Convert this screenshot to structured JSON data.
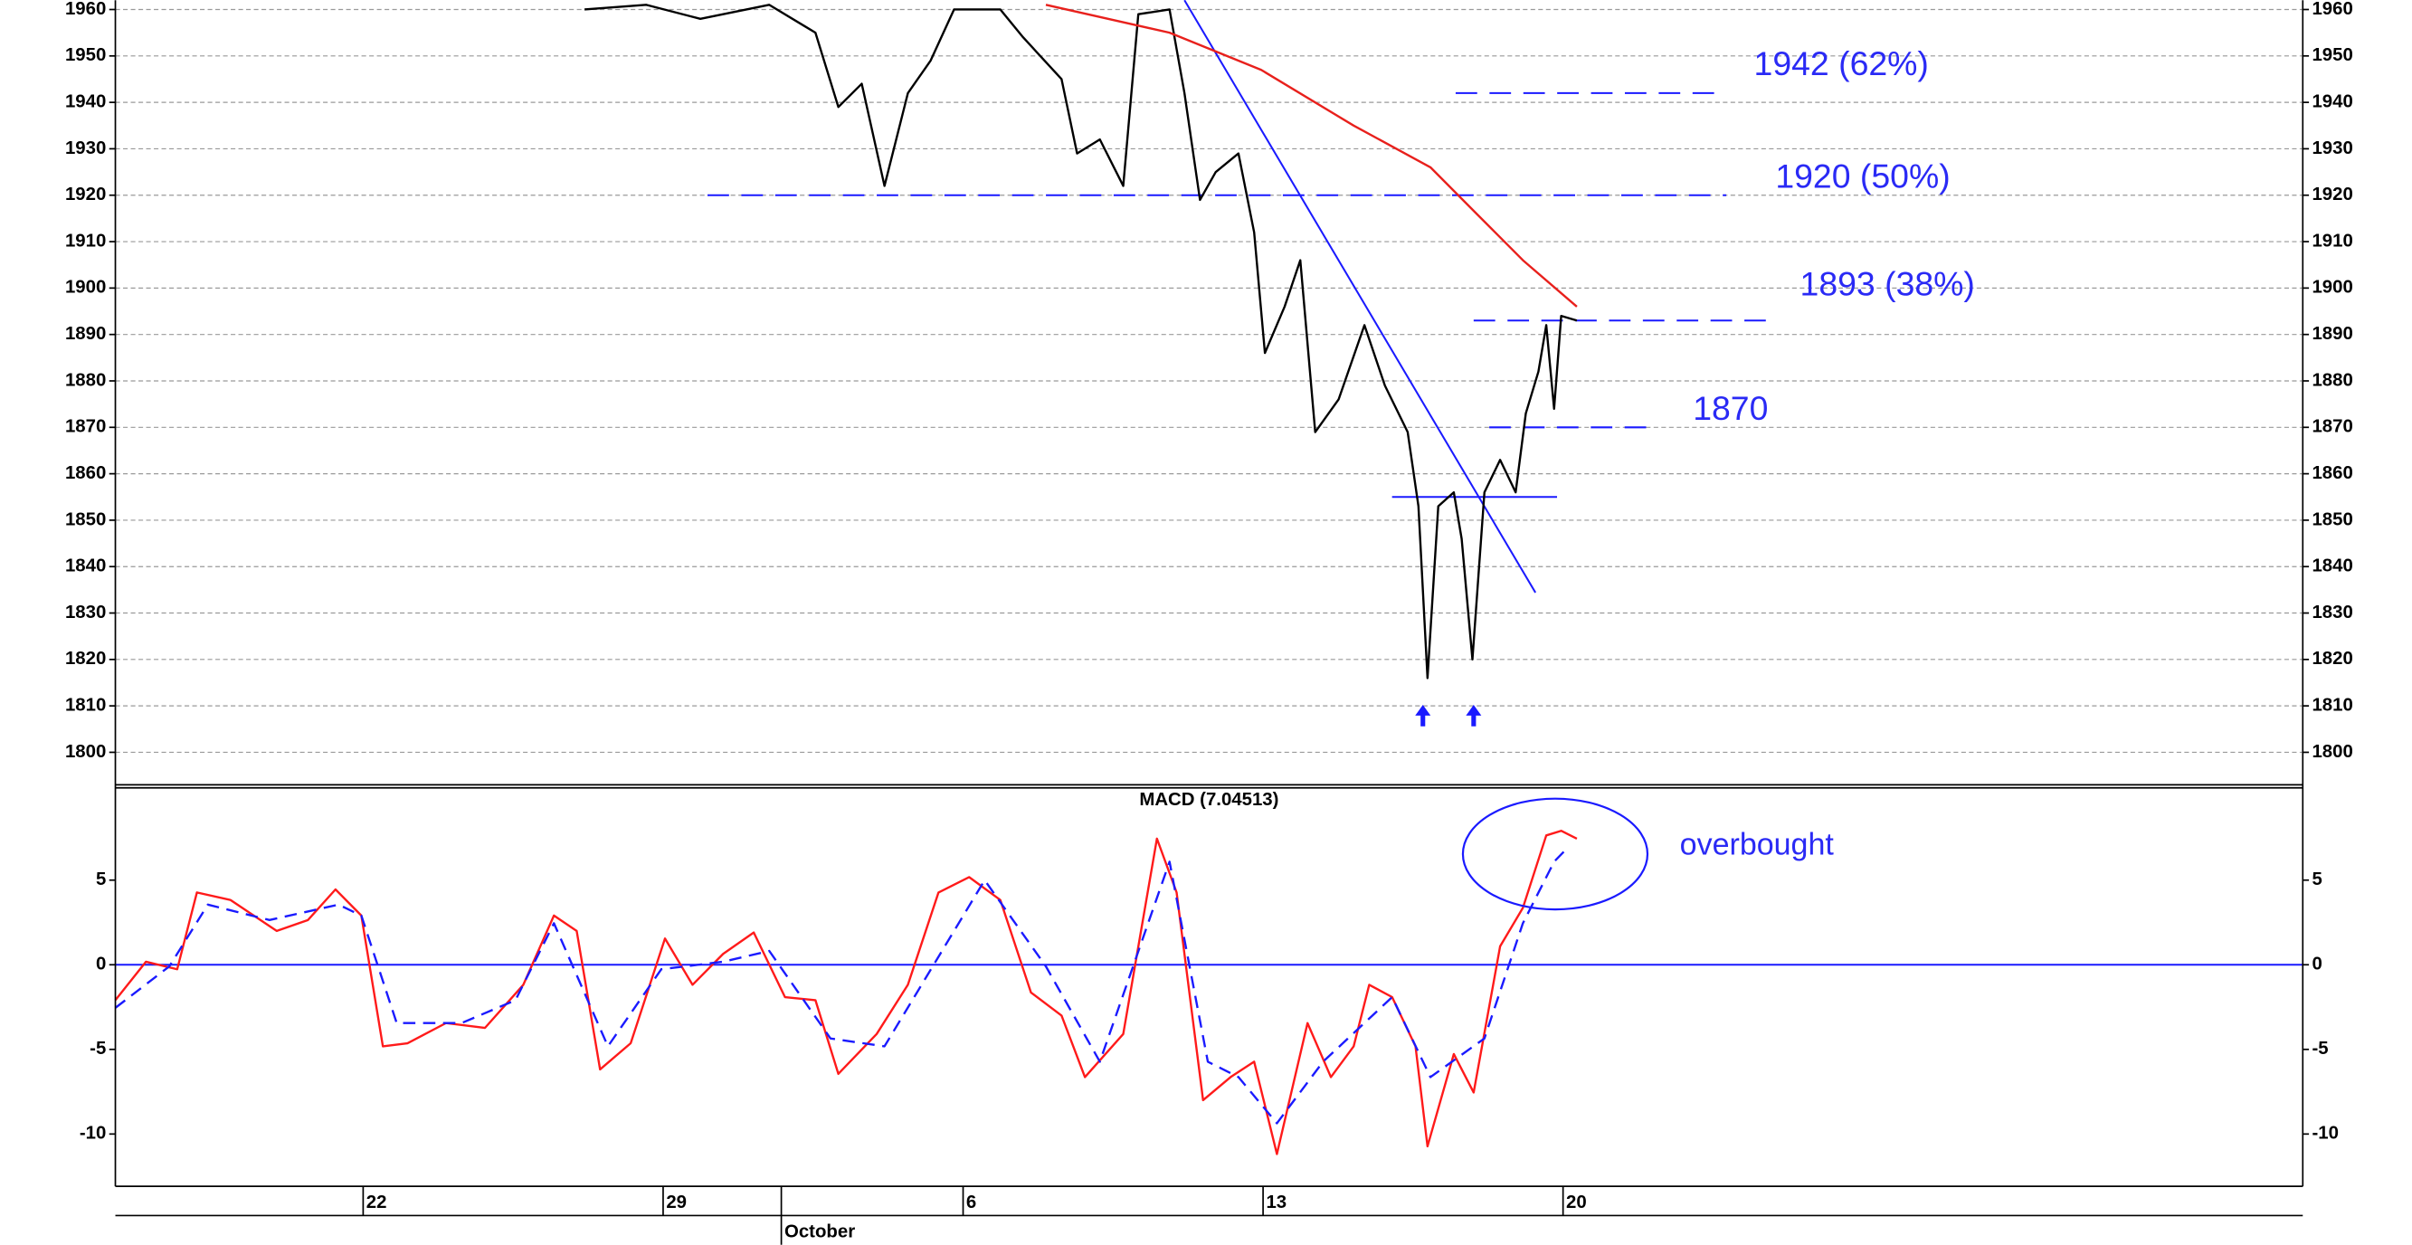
{
  "chart_data": [
    {
      "type": "line",
      "ylim": [
        1793,
        1962
      ],
      "yticks": [
        1800,
        1810,
        1820,
        1830,
        1840,
        1850,
        1860,
        1870,
        1880,
        1890,
        1900,
        1910,
        1920,
        1930,
        1940,
        1950,
        1960
      ],
      "xlim": [
        -4.13,
        32.33
      ],
      "grid": true,
      "series": [
        {
          "color": "#000000",
          "dashed": false,
          "x": [
            3.69,
            4.72,
            5.62,
            6.77,
            7.54,
            7.92,
            8.31,
            8.69,
            9.08,
            9.46,
            9.85,
            10.62,
            11.0,
            11.64,
            11.9,
            12.28,
            12.67,
            12.92,
            13.44,
            13.69,
            13.95,
            14.21,
            14.59,
            14.85,
            15.03,
            15.36,
            15.62,
            15.87,
            16.26,
            16.69,
            17.03,
            17.41,
            17.59,
            17.74,
            17.92,
            18.18,
            18.31,
            18.49,
            18.69,
            18.95,
            19.21,
            19.38,
            19.59,
            19.72,
            19.85,
            19.97,
            20.23
          ],
          "values": [
            1960,
            1961,
            1958,
            1961,
            1955,
            1939,
            1944,
            1922,
            1942,
            1949,
            1960,
            1960,
            1954,
            1945,
            1929,
            1932,
            1922,
            1959,
            1960,
            1942,
            1919,
            1925,
            1929,
            1912,
            1886,
            1896,
            1906,
            1869,
            1876,
            1892,
            1879,
            1869,
            1853,
            1816,
            1853,
            1856,
            1846,
            1820,
            1856,
            1863,
            1856,
            1873,
            1882,
            1892,
            1874,
            1894,
            1893
          ]
        },
        {
          "color": "#e8201c",
          "dashed": false,
          "x": [
            11.38,
            13.44,
            14.97,
            16.51,
            17.79,
            18.56,
            19.33,
            20.23
          ],
          "values": [
            1961,
            1955,
            1947,
            1935,
            1926,
            1916,
            1906,
            1896
          ]
        }
      ],
      "trendline": {
        "color": "#1a1aff",
        "x": [
          13.69,
          19.54
        ],
        "values": [
          1962,
          1834.4
        ]
      },
      "levels": [
        {
          "value": 1942,
          "x": [
            18.21,
            22.67
          ],
          "label": "1942 (62%)",
          "style": "dashed",
          "color": "#1a1aff"
        },
        {
          "value": 1920,
          "x": [
            5.74,
            22.72
          ],
          "label": "1920 (50%)",
          "style": "dashed",
          "color": "#1a1aff"
        },
        {
          "value": 1893,
          "x": [
            18.51,
            23.38
          ],
          "label": "1893 (38%)",
          "style": "dashed",
          "color": "#1a1aff"
        },
        {
          "value": 1870,
          "x": [
            18.77,
            21.51
          ],
          "label": "1870",
          "style": "dashed",
          "color": "#1a1aff"
        },
        {
          "value": 1855,
          "x": [
            17.15,
            19.9
          ],
          "style": "solid",
          "color": "#1a1aff"
        }
      ]
    },
    {
      "type": "line",
      "title": "MACD (7.04513)",
      "annotation": "overbought",
      "ylim": [
        -13.09,
        10.45
      ],
      "yticks": [
        -10,
        -5,
        0,
        5
      ],
      "zero_line_color": "#1a1aff",
      "xlim": [
        -4.13,
        32.33
      ],
      "xticks": [
        {
          "value": 0,
          "label": "22"
        },
        {
          "value": 5,
          "label": "29"
        },
        {
          "value": 10,
          "label": "6"
        },
        {
          "value": 15,
          "label": "13"
        },
        {
          "value": 20,
          "label": "20"
        }
      ],
      "month_labels": [
        {
          "x": 6.97,
          "label": "October"
        }
      ],
      "series": [
        {
          "color": "#ff1a1a",
          "dashed": false,
          "x": [
            -4.13,
            -3.62,
            -3.1,
            -2.77,
            -2.21,
            -1.44,
            -0.92,
            -0.46,
            -0.03,
            0.33,
            0.74,
            1.38,
            2.03,
            2.67,
            3.18,
            3.56,
            3.95,
            4.46,
            5.03,
            5.49,
            6.0,
            6.51,
            7.03,
            7.54,
            7.92,
            8.56,
            9.08,
            9.59,
            10.1,
            10.62,
            11.13,
            11.64,
            12.03,
            12.67,
            13.23,
            13.56,
            14.0,
            14.46,
            14.85,
            15.23,
            15.74,
            16.13,
            16.51,
            16.77,
            17.15,
            17.54,
            17.74,
            18.18,
            18.51,
            18.95,
            19.33,
            19.72,
            19.97,
            20.23
          ],
          "values": [
            -2.09,
            0.18,
            -0.27,
            4.27,
            3.82,
            2.0,
            2.64,
            4.45,
            2.91,
            -4.82,
            -4.64,
            -3.45,
            -3.73,
            -1.18,
            2.91,
            2.0,
            -6.18,
            -4.64,
            1.55,
            -1.18,
            0.64,
            1.91,
            -1.91,
            -2.09,
            -6.45,
            -4.09,
            -1.18,
            4.27,
            5.18,
            3.82,
            -1.64,
            -3.0,
            -6.64,
            -4.09,
            7.45,
            4.27,
            -8.0,
            -6.64,
            -5.73,
            -11.18,
            -3.45,
            -6.64,
            -4.82,
            -1.18,
            -1.91,
            -4.82,
            -10.73,
            -5.27,
            -7.55,
            1.09,
            3.36,
            7.64,
            7.91,
            7.45
          ]
        },
        {
          "color": "#1a1aff",
          "dashed": true,
          "x": [
            -4.13,
            -3.23,
            -2.59,
            -1.56,
            -0.41,
            -0.03,
            0.56,
            1.64,
            2.54,
            3.18,
            4.08,
            4.97,
            6.0,
            6.77,
            7.79,
            8.69,
            10.36,
            11.38,
            12.28,
            13.44,
            14.08,
            14.59,
            15.23,
            16.0,
            17.15,
            17.79,
            18.69,
            19.33,
            19.85,
            20.1
          ],
          "values": [
            -2.55,
            -0.09,
            3.55,
            2.64,
            3.55,
            2.91,
            -3.45,
            -3.45,
            -2.09,
            2.45,
            -4.82,
            -0.27,
            0.18,
            0.82,
            -4.36,
            -4.82,
            5.0,
            -0.09,
            -5.73,
            6.09,
            -5.73,
            -6.64,
            -9.36,
            -5.73,
            -1.91,
            -6.64,
            -4.36,
            2.45,
            6.09,
            7.0
          ]
        }
      ]
    }
  ]
}
